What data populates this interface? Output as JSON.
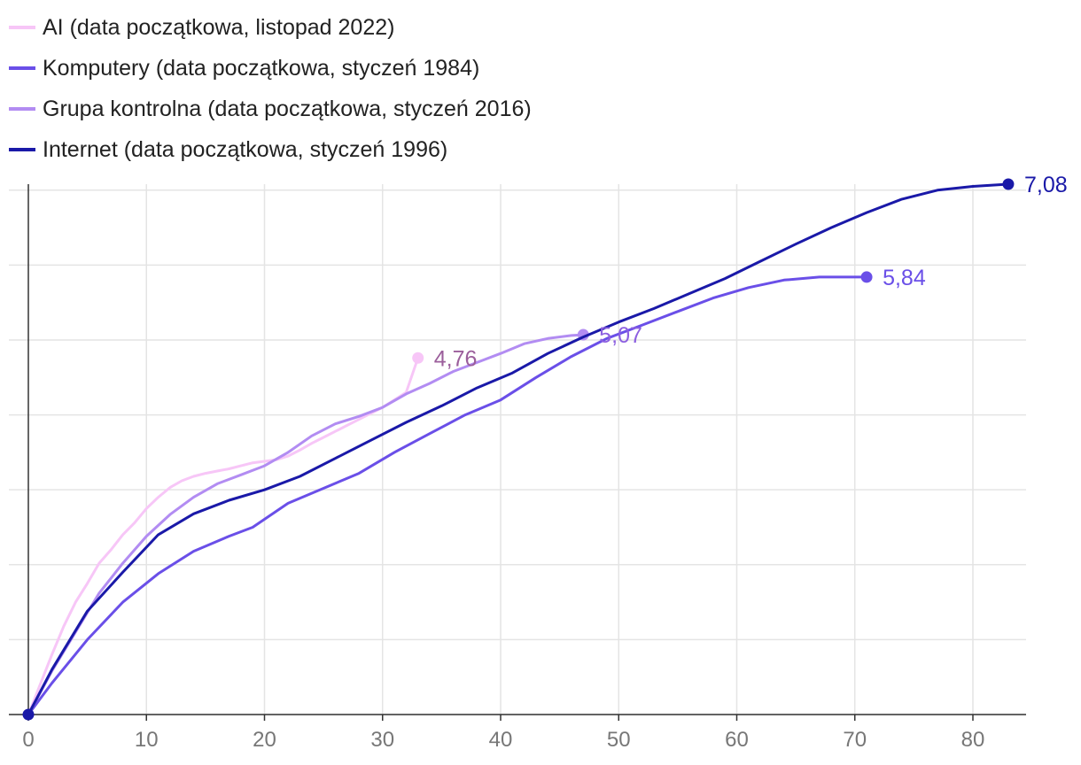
{
  "chart_data": {
    "type": "line",
    "title": "",
    "xlabel": "",
    "ylabel": "",
    "xlim": [
      0,
      85
    ],
    "ylim": [
      0,
      7.08
    ],
    "x_ticks": [
      "0",
      "10",
      "20",
      "30",
      "40",
      "50",
      "60",
      "70",
      "80"
    ],
    "legend_position": "top-left",
    "series": [
      {
        "name": "AI (data początkowa, listopad 2022)",
        "color": "#f7c6f7",
        "label_color": "#9b5e9b",
        "end_label": "4,76",
        "x": [
          0,
          1,
          2,
          3,
          4,
          5,
          6,
          7,
          8,
          9,
          10,
          11,
          12,
          13,
          14,
          15,
          16,
          17,
          18,
          19,
          20,
          21,
          22,
          23,
          24,
          25,
          26,
          27,
          28,
          29,
          30,
          31,
          32,
          33
        ],
        "y": [
          0,
          0.4,
          0.8,
          1.18,
          1.5,
          1.75,
          2.02,
          2.2,
          2.4,
          2.56,
          2.75,
          2.9,
          3.03,
          3.12,
          3.18,
          3.22,
          3.25,
          3.28,
          3.32,
          3.36,
          3.38,
          3.4,
          3.45,
          3.53,
          3.62,
          3.7,
          3.78,
          3.86,
          3.94,
          4.02,
          4.1,
          4.2,
          4.3,
          4.76
        ]
      },
      {
        "name": "Komputery (data początkowa, styczeń 1984)",
        "color": "#6a4fe8",
        "label_color": "#6a4fe8",
        "end_label": "5,84",
        "x": [
          0,
          2,
          5,
          8,
          11,
          14,
          17,
          19,
          22,
          25,
          28,
          31,
          34,
          37,
          40,
          43,
          46,
          49,
          52,
          55,
          58,
          61,
          64,
          67,
          70,
          71
        ],
        "y": [
          0,
          0.42,
          1.0,
          1.5,
          1.88,
          2.18,
          2.38,
          2.5,
          2.82,
          3.02,
          3.22,
          3.5,
          3.75,
          4.0,
          4.2,
          4.5,
          4.78,
          5.02,
          5.2,
          5.38,
          5.56,
          5.7,
          5.8,
          5.84,
          5.84,
          5.84
        ]
      },
      {
        "name": "Grupa kontrolna (data początkowa, styczeń 2016)",
        "color": "#b28cf2",
        "label_color": "#8c5fe0",
        "end_label": "5,07",
        "x": [
          0,
          2,
          4,
          6,
          8,
          10,
          12,
          14,
          16,
          18,
          20,
          22,
          24,
          26,
          28,
          30,
          32,
          34,
          36,
          38,
          40,
          42,
          44,
          46,
          47
        ],
        "y": [
          0,
          0.58,
          1.1,
          1.62,
          2.02,
          2.38,
          2.67,
          2.9,
          3.08,
          3.2,
          3.32,
          3.5,
          3.72,
          3.88,
          3.98,
          4.1,
          4.28,
          4.42,
          4.58,
          4.7,
          4.82,
          4.95,
          5.02,
          5.06,
          5.07
        ]
      },
      {
        "name": "Internet (data początkowa, styczeń 1996)",
        "color": "#1a19a8",
        "label_color": "#1a19a8",
        "end_label": "7,08",
        "x": [
          0,
          2,
          5,
          8,
          11,
          14,
          17,
          20,
          23,
          26,
          29,
          32,
          35,
          38,
          41,
          44,
          47,
          50,
          53,
          56,
          59,
          62,
          65,
          68,
          71,
          74,
          77,
          80,
          83
        ],
        "y": [
          0,
          0.6,
          1.38,
          1.9,
          2.4,
          2.68,
          2.86,
          3.0,
          3.18,
          3.42,
          3.66,
          3.9,
          4.12,
          4.36,
          4.56,
          4.82,
          5.04,
          5.24,
          5.42,
          5.62,
          5.82,
          6.05,
          6.28,
          6.5,
          6.7,
          6.88,
          7.0,
          7.05,
          7.08
        ]
      }
    ]
  }
}
